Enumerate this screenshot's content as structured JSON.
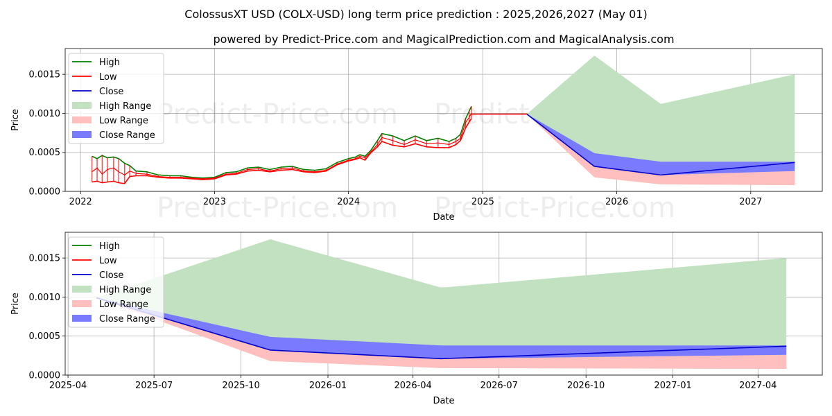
{
  "title": "ColossusXT USD (COLX-USD) long term price prediction : 2025,2026,2027 (May 01)",
  "subtitle": "powered by Predict-Price.com and MagicalPrediction.com and MagicalAnalysis.com",
  "watermark": "Predict-Price.com",
  "colors": {
    "high": "#008000",
    "low": "#ff0000",
    "close": "#0000cc",
    "high_range": "#c1e1c1",
    "low_range": "#ffbfbf",
    "close_range": "#7a7aff"
  },
  "chart_data": [
    {
      "type": "line",
      "xlabel": "Date",
      "ylabel": "Price",
      "grid": true,
      "legend_position": "upper-left",
      "xlim": [
        "2021-11-20",
        "2027-07-15"
      ],
      "ylim": [
        0,
        0.00183
      ],
      "x_ticks": [
        "2022",
        "2023",
        "2024",
        "2025",
        "2026",
        "2027"
      ],
      "y_ticks": [
        "0.0000",
        "0.0005",
        "0.0010",
        "0.0015"
      ],
      "legend": [
        "High",
        "Low",
        "Close",
        "High Range",
        "Low Range",
        "Close Range"
      ],
      "history": {
        "x": [
          "2022-02-01",
          "2022-02-15",
          "2022-03-01",
          "2022-03-15",
          "2022-04-01",
          "2022-04-15",
          "2022-05-01",
          "2022-05-15",
          "2022-06-01",
          "2022-07-01",
          "2022-08-01",
          "2022-09-01",
          "2022-10-01",
          "2022-11-01",
          "2022-12-01",
          "2023-01-01",
          "2023-02-01",
          "2023-03-01",
          "2023-04-01",
          "2023-05-01",
          "2023-06-01",
          "2023-07-01",
          "2023-08-01",
          "2023-09-01",
          "2023-10-01",
          "2023-11-01",
          "2023-12-01",
          "2024-01-01",
          "2024-01-20",
          "2024-02-01",
          "2024-02-15",
          "2024-03-01",
          "2024-03-20",
          "2024-04-01",
          "2024-05-01",
          "2024-06-01",
          "2024-07-01",
          "2024-08-01",
          "2024-09-01",
          "2024-10-01",
          "2024-10-20",
          "2024-11-01",
          "2024-11-15",
          "2024-11-25",
          "2024-12-01"
        ],
        "high": [
          0.00045,
          0.00042,
          0.00046,
          0.00043,
          0.00044,
          0.00042,
          0.00036,
          0.00033,
          0.00026,
          0.00025,
          0.00021,
          0.0002,
          0.0002,
          0.00018,
          0.00017,
          0.00018,
          0.00024,
          0.00025,
          0.0003,
          0.00031,
          0.00028,
          0.00031,
          0.00032,
          0.00028,
          0.00027,
          0.00029,
          0.00037,
          0.00042,
          0.00044,
          0.00047,
          0.00045,
          0.00052,
          0.00065,
          0.00074,
          0.00071,
          0.00065,
          0.00071,
          0.00065,
          0.00068,
          0.00064,
          0.00068,
          0.00073,
          0.00093,
          0.00103,
          0.00109
        ],
        "low": [
          0.00012,
          0.00013,
          0.00011,
          0.00012,
          0.00013,
          0.00011,
          0.0001,
          0.00019,
          0.0002,
          0.0002,
          0.00018,
          0.00017,
          0.00017,
          0.00016,
          0.00015,
          0.00016,
          0.00021,
          0.00022,
          0.00026,
          0.00027,
          0.00025,
          0.00027,
          0.00028,
          0.00025,
          0.00024,
          0.00026,
          0.00034,
          0.00039,
          0.00041,
          0.00043,
          0.0004,
          0.00049,
          0.00057,
          0.00064,
          0.00059,
          0.00057,
          0.00061,
          0.00057,
          0.00056,
          0.00056,
          0.0006,
          0.00065,
          0.00081,
          0.00089,
          0.00093
        ],
        "close": [
          0.00025,
          0.0003,
          0.00022,
          0.00028,
          0.0003,
          0.00025,
          0.00021,
          0.00026,
          0.00023,
          0.00022,
          0.00019,
          0.00018,
          0.00018,
          0.00017,
          0.00016,
          0.00017,
          0.00022,
          0.00023,
          0.00028,
          0.00029,
          0.00026,
          0.00029,
          0.0003,
          0.00026,
          0.00025,
          0.00027,
          0.00035,
          0.0004,
          0.00042,
          0.00045,
          0.00043,
          0.0005,
          0.0006,
          0.00069,
          0.00065,
          0.0006,
          0.00066,
          0.00061,
          0.00062,
          0.0006,
          0.00064,
          0.00068,
          0.00088,
          0.00095,
          0.001
        ]
      },
      "flat": {
        "x": [
          "2024-12-01",
          "2025-05-01"
        ],
        "value": 0.00099
      },
      "forecast": {
        "x": [
          "2025-05-01",
          "2025-11-01",
          "2026-05-01",
          "2027-05-01"
        ],
        "close": [
          0.00099,
          0.00032,
          0.00021,
          0.00037
        ],
        "high_range_top": [
          0.00099,
          0.00174,
          0.00112,
          0.0015
        ],
        "close_range_top": [
          0.00099,
          0.00049,
          0.00038,
          0.00038
        ],
        "close_range_bottom": [
          0.00099,
          0.00032,
          0.00021,
          0.00026
        ],
        "low_range_bottom": [
          0.00099,
          0.00018,
          9e-05,
          8e-05
        ]
      }
    },
    {
      "type": "line",
      "xlabel": "Date",
      "ylabel": "Price",
      "grid": true,
      "legend_position": "upper-left",
      "xlim": [
        "2025-03-29",
        "2027-06-08"
      ],
      "ylim": [
        0,
        0.00183
      ],
      "x_ticks": [
        "2025-04",
        "2025-07",
        "2025-10",
        "2026-01",
        "2026-04",
        "2026-07",
        "2026-10",
        "2027-01",
        "2027-04"
      ],
      "y_ticks": [
        "0.0000",
        "0.0005",
        "0.0010",
        "0.0015"
      ],
      "legend": [
        "High",
        "Low",
        "Close",
        "High Range",
        "Low Range",
        "Close Range"
      ],
      "forecast": {
        "x": [
          "2025-05-01",
          "2025-11-01",
          "2026-05-01",
          "2027-05-01"
        ],
        "close": [
          0.00099,
          0.00032,
          0.00021,
          0.00037
        ],
        "high_range_top": [
          0.00099,
          0.00174,
          0.00112,
          0.0015
        ],
        "close_range_top": [
          0.00099,
          0.00049,
          0.00038,
          0.00038
        ],
        "close_range_bottom": [
          0.00099,
          0.00032,
          0.00021,
          0.00026
        ],
        "low_range_bottom": [
          0.00099,
          0.00018,
          9e-05,
          8e-05
        ]
      }
    }
  ]
}
